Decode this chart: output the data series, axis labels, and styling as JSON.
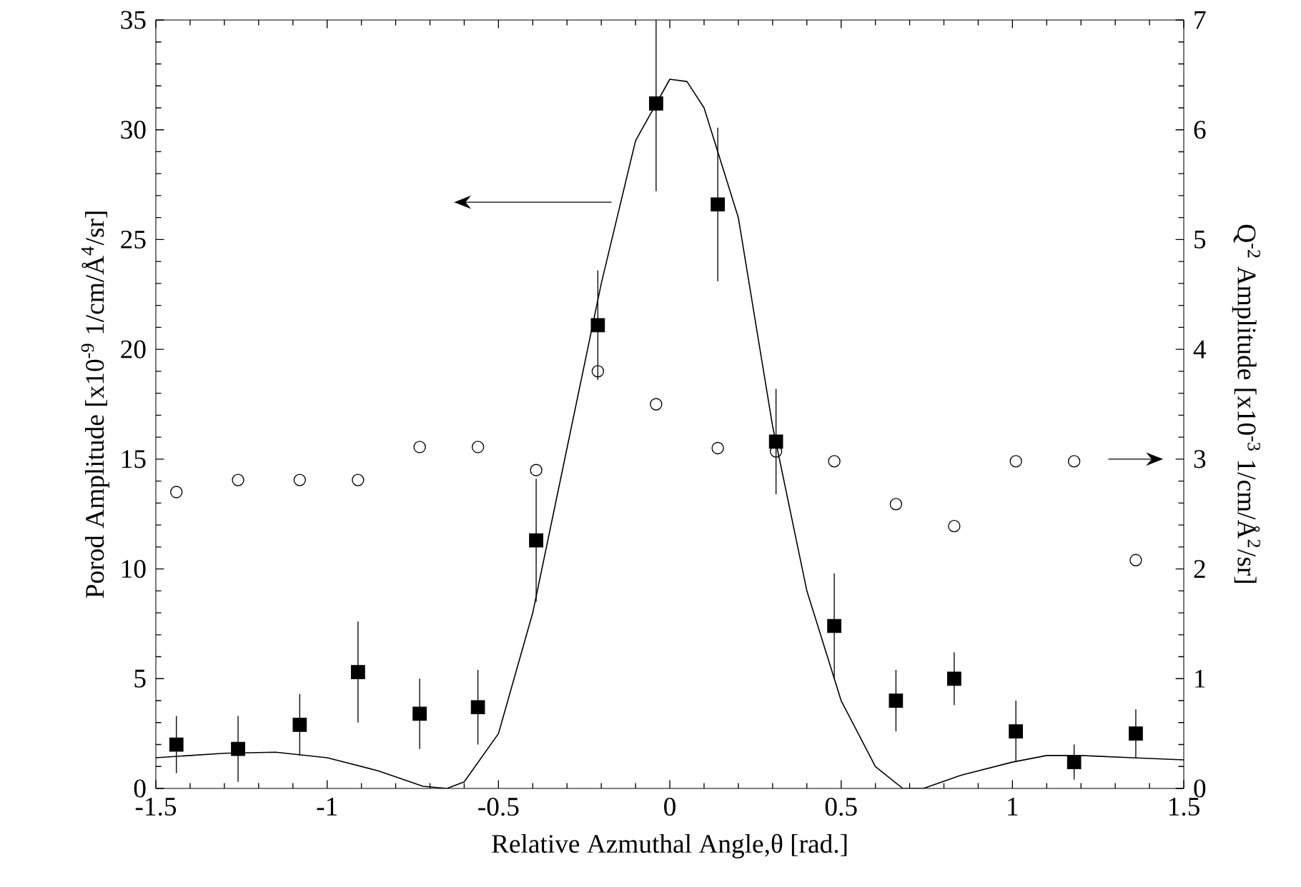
{
  "chart_data": {
    "type": "scatter",
    "xlabel": "Relative Azmuthal Angle,θ [rad.]",
    "ylabel": "Porod Amplitude [x10$^{-9}$ 1/cm/Å$^{4}$/sr]",
    "y2label": "Q$^{-2}$ Amplitude [x10$^{-3}$ 1/cm/Å$^{2}$/sr]",
    "xlim": [
      -1.5,
      1.5
    ],
    "xticks": [
      -1.5,
      -1,
      -0.5,
      0,
      0.5,
      1,
      1.5
    ],
    "ylim": [
      0,
      35
    ],
    "yticks": [
      0,
      5,
      10,
      15,
      20,
      25,
      30,
      35
    ],
    "y2lim": [
      0,
      7
    ],
    "y2ticks": [
      0,
      1,
      2,
      3,
      4,
      5,
      6,
      7
    ],
    "series": [
      {
        "marker": "square",
        "color": "#000000",
        "x": [
          -1.44,
          -1.26,
          -1.08,
          -0.91,
          -0.73,
          -0.56,
          -0.39,
          -0.21,
          -0.04,
          0.14,
          0.31,
          0.48,
          0.66,
          0.83,
          1.01,
          1.18,
          1.36
        ],
        "values": [
          2.0,
          1.8,
          2.9,
          5.3,
          3.4,
          3.7,
          11.3,
          21.1,
          31.2,
          26.6,
          15.8,
          7.4,
          4.0,
          5.0,
          2.6,
          1.2,
          2.5
        ],
        "errors": [
          1.3,
          1.5,
          1.4,
          2.3,
          1.6,
          1.7,
          2.8,
          2.5,
          4.0,
          3.5,
          2.4,
          2.4,
          1.4,
          1.2,
          1.4,
          0.8,
          1.1
        ]
      },
      {
        "marker": "circle",
        "axis": "y2",
        "color": "#000000",
        "x": [
          -1.44,
          -1.26,
          -1.08,
          -0.91,
          -0.73,
          -0.56,
          -0.39,
          -0.21,
          -0.04,
          0.14,
          0.31,
          0.48,
          0.66,
          0.83,
          1.01,
          1.18,
          1.36
        ],
        "values": [
          2.7,
          2.81,
          2.81,
          2.81,
          3.11,
          3.11,
          2.9,
          3.8,
          3.5,
          3.1,
          3.07,
          2.98,
          2.59,
          2.39,
          2.98,
          2.98,
          2.08
        ]
      },
      {
        "type": "line",
        "marker": "none",
        "line_style": "solid",
        "color": "#000000",
        "x": [
          -1.5,
          -1.3,
          -1.15,
          -1.0,
          -0.85,
          -0.72,
          -0.65,
          -0.6,
          -0.5,
          -0.4,
          -0.3,
          -0.2,
          -0.1,
          0,
          0.05,
          0.1,
          0.2,
          0.3,
          0.4,
          0.5,
          0.6,
          0.68,
          0.74,
          0.85,
          1.0,
          1.1,
          1.2,
          1.35,
          1.5
        ],
        "values": [
          1.4,
          1.6,
          1.65,
          1.4,
          0.8,
          0.1,
          0,
          0.3,
          2.5,
          8,
          15.5,
          23,
          29.5,
          32.3,
          32.2,
          31,
          26,
          16.5,
          9,
          4,
          1,
          0,
          0,
          0.6,
          1.2,
          1.5,
          1.5,
          1.4,
          1.3
        ]
      }
    ]
  }
}
